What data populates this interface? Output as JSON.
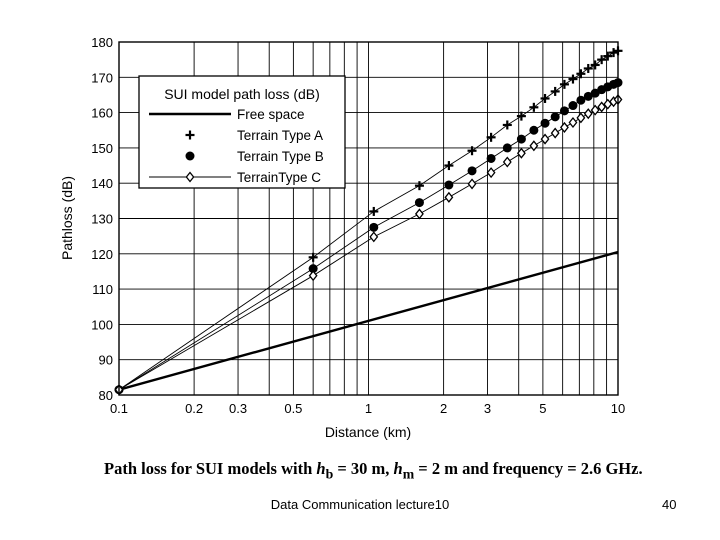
{
  "chart_data": {
    "type": "line",
    "xscale": "log",
    "xlim": [
      0.1,
      10
    ],
    "ylim": [
      80,
      180
    ],
    "grid": true,
    "xlabel": "Distance (km)",
    "ylabel": "Pathloss (dB)",
    "xticks": [
      0.1,
      0.2,
      0.3,
      0.5,
      1,
      2,
      3,
      5,
      10
    ],
    "yticks": [
      80,
      90,
      100,
      110,
      120,
      130,
      140,
      150,
      160,
      170,
      180
    ],
    "legend_title": "SUI model path loss (dB)",
    "legend_position": "top-left",
    "series": [
      {
        "name": "Free space",
        "marker": "none",
        "x": [
          0.1,
          10
        ],
        "y": [
          81.5,
          120.5
        ]
      },
      {
        "name": "Terrain Type A",
        "marker": "plus",
        "x": [
          0.1,
          0.6,
          1.05,
          1.6,
          2.1,
          2.6,
          3.1,
          3.6,
          4.1,
          4.6,
          5.1,
          5.6,
          6.1,
          6.6,
          7.1,
          7.6,
          8.1,
          8.6,
          9.1,
          9.6,
          10
        ],
        "y": [
          81.5,
          119,
          132,
          139.3,
          145,
          149.2,
          153,
          156.5,
          159,
          161.5,
          164,
          166,
          168,
          169.5,
          171,
          172.5,
          173.5,
          175,
          176,
          177,
          177.5
        ]
      },
      {
        "name": "Terrain Type B",
        "marker": "circle",
        "x": [
          0.1,
          0.6,
          1.05,
          1.6,
          2.1,
          2.6,
          3.1,
          3.6,
          4.1,
          4.6,
          5.1,
          5.6,
          6.1,
          6.6,
          7.1,
          7.6,
          8.1,
          8.6,
          9.1,
          9.6,
          10
        ],
        "y": [
          81.5,
          115.8,
          127.5,
          134.5,
          139.5,
          143.5,
          147,
          150,
          152.5,
          155,
          157,
          158.8,
          160.5,
          162,
          163.5,
          164.6,
          165.5,
          166.5,
          167.3,
          168,
          168.5
        ]
      },
      {
        "name": "TerrainType C",
        "marker": "diamond",
        "x": [
          0.1,
          0.6,
          1.05,
          1.6,
          2.1,
          2.6,
          3.1,
          3.6,
          4.1,
          4.6,
          5.1,
          5.6,
          6.1,
          6.6,
          7.1,
          7.6,
          8.1,
          8.6,
          9.1,
          9.6,
          10
        ],
        "y": [
          81.5,
          113.8,
          124.8,
          131.3,
          136,
          139.8,
          143,
          146,
          148.5,
          150.6,
          152.5,
          154.2,
          155.8,
          157.2,
          158.5,
          159.7,
          160.7,
          161.6,
          162.4,
          163.1,
          163.7
        ]
      }
    ]
  },
  "caption": {
    "prefix": "Path loss for SUI models with ",
    "hb_sym": "h",
    "hb_sub": "b",
    "hb_val": " = 30 m, ",
    "hm_sym": "h",
    "hm_sub": "m",
    "hm_val": " = 2 m and frequency = 2.6 GHz."
  },
  "footer": {
    "text": "Data Communication lecture10",
    "page_number": "40"
  }
}
